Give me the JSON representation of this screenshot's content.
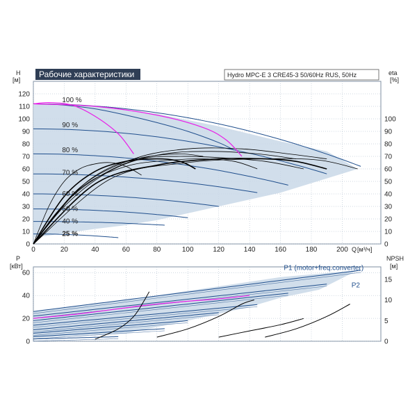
{
  "title": "Рабочие характеристики",
  "subtitle": "Hydro MPC-E 3 CRE45-3 50/60Hz RUS, 50Hz",
  "colors": {
    "title_bg": "#2f3e55",
    "title_fg": "#ffffff",
    "envelope": "#c9d8e8",
    "envelope_light": "#e4edf6",
    "curve_blue": "#1f4e8c",
    "curve_black": "#000000",
    "curve_magenta": "#e81ee8",
    "grid": "#9fb0c2"
  },
  "chart_data": [
    {
      "type": "line",
      "name": "H-Q",
      "ylabel": "H",
      "yunit": "[м]",
      "y2label": "eta",
      "y2unit": "[%]",
      "xlabel": "Q",
      "xunit": "[м³/ч]",
      "xlim": [
        0,
        225
      ],
      "ylim": [
        0,
        130
      ],
      "y2lim": [
        0,
        130
      ],
      "xticks": [
        0,
        20,
        40,
        60,
        80,
        100,
        120,
        140,
        160,
        180,
        200
      ],
      "yticks": [
        0,
        10,
        20,
        30,
        40,
        50,
        60,
        70,
        80,
        90,
        100,
        110,
        120
      ],
      "y2ticks": [
        0,
        10,
        20,
        30,
        40,
        50,
        60,
        70,
        80,
        90,
        100
      ],
      "grid": true,
      "speed_labels": [
        {
          "text": "100 %",
          "q": 15,
          "h": 115
        },
        {
          "text": "90 %",
          "q": 15,
          "h": 95
        },
        {
          "text": "80 %",
          "q": 15,
          "h": 75
        },
        {
          "text": "70 %",
          "q": 15,
          "h": 57
        },
        {
          "text": "60 %",
          "q": 15,
          "h": 40
        },
        {
          "text": "50 %",
          "q": 15,
          "h": 28
        },
        {
          "text": "40 %",
          "q": 15,
          "h": 18
        },
        {
          "text": "25 %",
          "q": 15,
          "h": 8
        }
      ],
      "envelope": [
        [
          0,
          112
        ],
        [
          40,
          110
        ],
        [
          80,
          104
        ],
        [
          120,
          94
        ],
        [
          160,
          82
        ],
        [
          190,
          74
        ],
        [
          210,
          60
        ],
        [
          160,
          41
        ],
        [
          120,
          30
        ],
        [
          80,
          19
        ],
        [
          60,
          15
        ],
        [
          40,
          12
        ],
        [
          0,
          5
        ]
      ],
      "speed_curves": [
        {
          "h0": 112,
          "qmax": 212,
          "hend": 62
        },
        {
          "h0": 92,
          "qmax": 190,
          "hend": 56
        },
        {
          "h0": 72,
          "qmax": 165,
          "hend": 47
        },
        {
          "h0": 56,
          "qmax": 145,
          "hend": 41
        },
        {
          "h0": 40,
          "qmax": 120,
          "hend": 30
        },
        {
          "h0": 28,
          "qmax": 100,
          "hend": 21
        },
        {
          "h0": 18,
          "qmax": 85,
          "hend": 15
        },
        {
          "h0": 8,
          "qmax": 55,
          "hend": 5
        }
      ],
      "system_curve": [
        [
          0,
          112
        ],
        [
          20,
          111
        ],
        [
          40,
          108
        ],
        [
          60,
          103
        ],
        [
          80,
          97
        ],
        [
          100,
          90
        ],
        [
          120,
          81
        ],
        [
          130,
          75
        ]
      ],
      "magenta_curves": [
        [
          [
            0,
            112
          ],
          [
            10,
            113
          ],
          [
            25,
            111
          ],
          [
            40,
            102
          ],
          [
            55,
            88
          ],
          [
            65,
            72
          ]
        ],
        [
          [
            0,
            112
          ],
          [
            40,
            110
          ],
          [
            80,
            103
          ],
          [
            110,
            93
          ],
          [
            125,
            83
          ],
          [
            135,
            70
          ]
        ]
      ],
      "eta_curves": [
        [
          [
            0,
            0
          ],
          [
            10,
            30
          ],
          [
            20,
            50
          ],
          [
            30,
            60
          ],
          [
            40,
            64
          ],
          [
            50,
            65
          ],
          [
            60,
            62
          ],
          [
            70,
            55
          ]
        ],
        [
          [
            0,
            0
          ],
          [
            20,
            38
          ],
          [
            40,
            58
          ],
          [
            60,
            66
          ],
          [
            80,
            68
          ],
          [
            95,
            66
          ],
          [
            105,
            60
          ]
        ],
        [
          [
            0,
            0
          ],
          [
            30,
            44
          ],
          [
            60,
            62
          ],
          [
            90,
            67
          ],
          [
            110,
            68
          ],
          [
            130,
            66
          ],
          [
            145,
            60
          ]
        ],
        [
          [
            0,
            0
          ],
          [
            40,
            48
          ],
          [
            80,
            63
          ],
          [
            120,
            68
          ],
          [
            150,
            68
          ],
          [
            170,
            66
          ],
          [
            190,
            60
          ]
        ],
        [
          [
            0,
            0
          ],
          [
            50,
            52
          ],
          [
            100,
            65
          ],
          [
            150,
            68
          ],
          [
            185,
            67
          ],
          [
            210,
            60
          ]
        ],
        [
          [
            0,
            0
          ],
          [
            20,
            30
          ],
          [
            45,
            55
          ],
          [
            70,
            68
          ],
          [
            95,
            70
          ],
          [
            120,
            69
          ],
          [
            150,
            66
          ],
          [
            175,
            60
          ]
        ],
        [
          [
            0,
            0
          ],
          [
            25,
            38
          ],
          [
            55,
            62
          ],
          [
            85,
            72
          ],
          [
            115,
            74
          ],
          [
            145,
            72
          ],
          [
            170,
            68
          ]
        ],
        [
          [
            0,
            0
          ],
          [
            30,
            45
          ],
          [
            65,
            68
          ],
          [
            100,
            76
          ],
          [
            135,
            76
          ],
          [
            165,
            72
          ],
          [
            190,
            68
          ]
        ],
        [
          [
            0,
            0
          ],
          [
            15,
            25
          ],
          [
            35,
            50
          ],
          [
            55,
            64
          ],
          [
            75,
            70
          ],
          [
            95,
            72
          ],
          [
            110,
            70
          ]
        ]
      ]
    },
    {
      "type": "line",
      "name": "P-Q",
      "ylabel": "P",
      "yunit": "[кВт]",
      "y2label": "NPSH",
      "y2unit": "[м]",
      "xlim": [
        0,
        225
      ],
      "ylim": [
        0,
        65
      ],
      "y2lim": [
        0,
        18
      ],
      "xticks": [
        0,
        20,
        40,
        60,
        80,
        100,
        120,
        140,
        160,
        180,
        200
      ],
      "yticks": [
        0,
        20,
        40,
        60
      ],
      "y2ticks": [
        0,
        5,
        10,
        15
      ],
      "grid": true,
      "series_labels": [
        {
          "text": "P1 (motor+freq.converter)",
          "q": 188,
          "p": 64
        },
        {
          "text": "P2",
          "q": 206,
          "p": 49
        }
      ],
      "envelope": [
        [
          0,
          26
        ],
        [
          60,
          36
        ],
        [
          120,
          48
        ],
        [
          160,
          56
        ],
        [
          210,
          62
        ],
        [
          185,
          45
        ],
        [
          160,
          38
        ],
        [
          140,
          30
        ],
        [
          100,
          18
        ],
        [
          60,
          7
        ],
        [
          0,
          3
        ]
      ],
      "power_curves": [
        {
          "p0": 26,
          "qmax": 212,
          "pend": 62
        },
        {
          "p0": 22,
          "qmax": 190,
          "pend": 50
        },
        {
          "p0": 18,
          "qmax": 165,
          "pend": 42
        },
        {
          "p0": 14,
          "qmax": 145,
          "pend": 32
        },
        {
          "p0": 10,
          "qmax": 120,
          "pend": 25
        },
        {
          "p0": 7,
          "qmax": 100,
          "pend": 18
        },
        {
          "p0": 4,
          "qmax": 85,
          "pend": 11
        },
        {
          "p0": 2,
          "qmax": 55,
          "pend": 4
        }
      ],
      "magenta_curve": [
        [
          0,
          20
        ],
        [
          30,
          24
        ],
        [
          70,
          31
        ],
        [
          100,
          35
        ],
        [
          120,
          37
        ],
        [
          140,
          40
        ]
      ],
      "npsh_curves": [
        [
          [
            40,
            0.5
          ],
          [
            55,
            3
          ],
          [
            65,
            6
          ],
          [
            72,
            10
          ],
          [
            75,
            12
          ]
        ],
        [
          [
            80,
            1
          ],
          [
            100,
            3
          ],
          [
            120,
            6
          ],
          [
            135,
            9
          ],
          [
            143,
            10
          ]
        ],
        [
          [
            120,
            1
          ],
          [
            140,
            2.5
          ],
          [
            160,
            4
          ],
          [
            175,
            5.5
          ]
        ],
        [
          [
            150,
            1
          ],
          [
            170,
            3
          ],
          [
            190,
            6
          ],
          [
            205,
            9
          ]
        ]
      ]
    }
  ]
}
